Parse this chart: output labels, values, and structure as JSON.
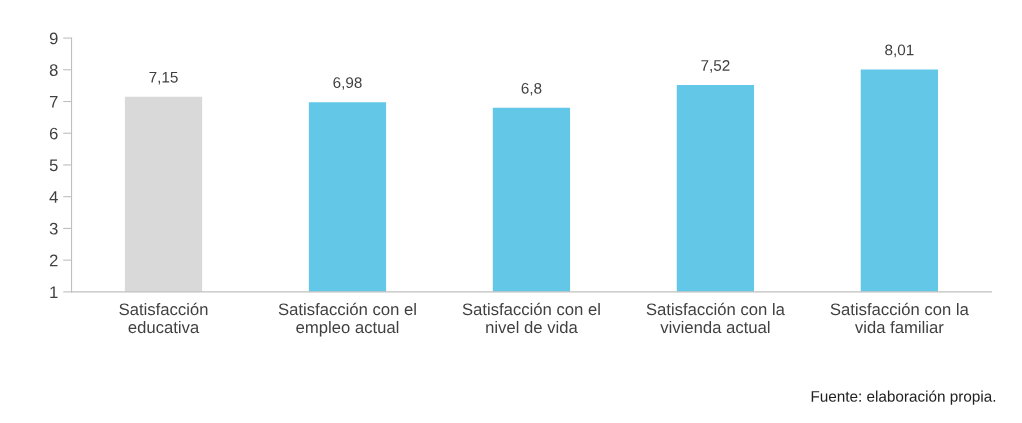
{
  "chart_data": {
    "type": "bar",
    "categories": [
      "Satisfacción\neducativa",
      "Satisfacción con el\nempleo actual",
      "Satisfacción con el\nnivel de vida",
      "Satisfacción con la\nvivienda actual",
      "Satisfacción con la\nvida familiar"
    ],
    "values": [
      7.15,
      6.98,
      6.8,
      7.52,
      8.01
    ],
    "value_labels": [
      "7,15",
      "6,98",
      "6,8",
      "7,52",
      "8,01"
    ],
    "colors": [
      "#d9d9d9",
      "#63c7e8",
      "#63c7e8",
      "#63c7e8",
      "#63c7e8"
    ],
    "ylim": [
      1,
      9
    ],
    "yticks": [
      1,
      2,
      3,
      4,
      5,
      6,
      7,
      8,
      9
    ],
    "grid": false,
    "legend": false,
    "annotations": [
      "Fuente: elaboración propia."
    ]
  }
}
